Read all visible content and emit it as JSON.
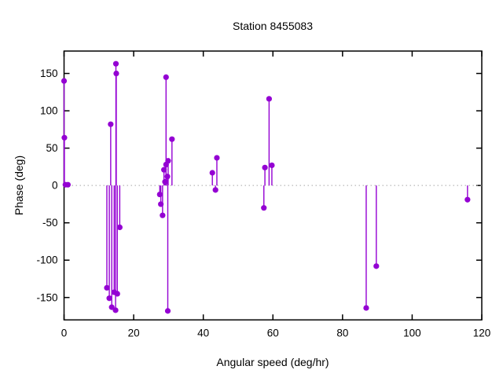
{
  "chart_data": {
    "type": "scatter",
    "style": "impulses-with-points",
    "title": "Station 8455083",
    "xlabel": "Angular speed (deg/hr)",
    "ylabel": "Phase (deg)",
    "xlim": [
      0,
      120
    ],
    "ylim": [
      -180,
      180
    ],
    "xticks": [
      0,
      20,
      40,
      60,
      80,
      100,
      120
    ],
    "yticks": [
      -150,
      -100,
      -50,
      0,
      50,
      100,
      150
    ],
    "grid": false,
    "legend": "none",
    "accent_color": "#9400d3",
    "border_color": "#000000",
    "zero_line": {
      "y": 0,
      "style": "dotted",
      "color": "#a8a8a8"
    },
    "points": [
      {
        "x": 0.0,
        "y": 140
      },
      {
        "x": 0.1,
        "y": 64
      },
      {
        "x": 0.4,
        "y": 1
      },
      {
        "x": 1.1,
        "y": 1
      },
      {
        "x": 12.3,
        "y": -137
      },
      {
        "x": 13.0,
        "y": -151
      },
      {
        "x": 13.4,
        "y": 82
      },
      {
        "x": 13.7,
        "y": -163
      },
      {
        "x": 14.4,
        "y": -143
      },
      {
        "x": 14.8,
        "y": -167
      },
      {
        "x": 14.9,
        "y": 163
      },
      {
        "x": 15.0,
        "y": 150
      },
      {
        "x": 15.3,
        "y": -145
      },
      {
        "x": 16.0,
        "y": -56
      },
      {
        "x": 27.5,
        "y": -12
      },
      {
        "x": 27.8,
        "y": -25
      },
      {
        "x": 28.3,
        "y": -40
      },
      {
        "x": 28.7,
        "y": 21
      },
      {
        "x": 29.0,
        "y": 5
      },
      {
        "x": 29.3,
        "y": 28
      },
      {
        "x": 29.3,
        "y": 145
      },
      {
        "x": 29.7,
        "y": 12
      },
      {
        "x": 29.9,
        "y": 33
      },
      {
        "x": 29.8,
        "y": -168
      },
      {
        "x": 31.0,
        "y": 62
      },
      {
        "x": 42.6,
        "y": 17
      },
      {
        "x": 43.5,
        "y": -6
      },
      {
        "x": 43.9,
        "y": 37
      },
      {
        "x": 57.4,
        "y": -30
      },
      {
        "x": 57.7,
        "y": 24
      },
      {
        "x": 58.9,
        "y": 116
      },
      {
        "x": 59.7,
        "y": 27
      },
      {
        "x": 86.8,
        "y": -164
      },
      {
        "x": 89.7,
        "y": -108
      },
      {
        "x": 115.9,
        "y": -19
      }
    ]
  }
}
